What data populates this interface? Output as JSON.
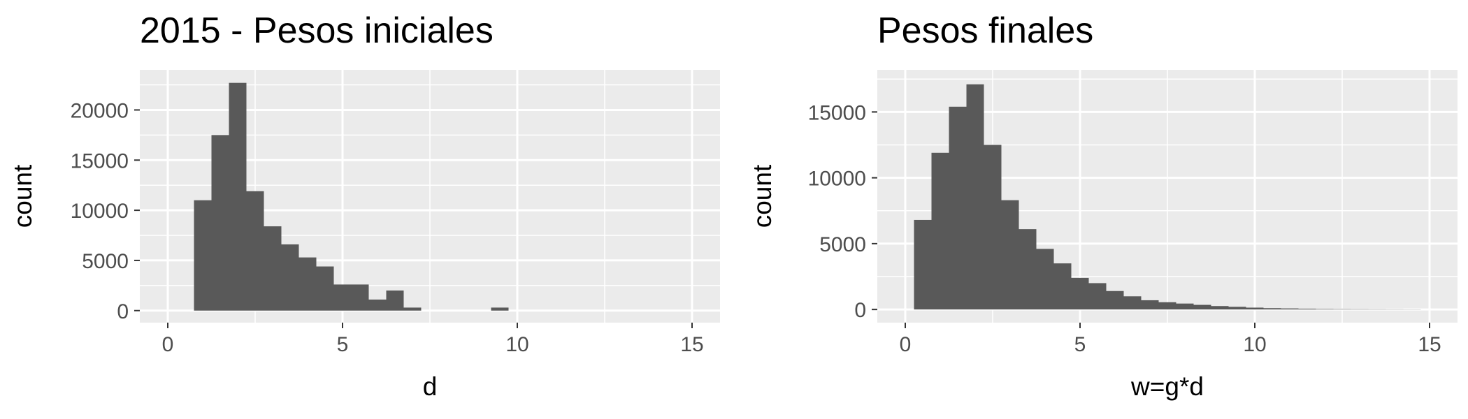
{
  "chart_data": [
    {
      "type": "bar",
      "title": "2015 - Pesos iniciales",
      "xlabel": "d",
      "ylabel": "count",
      "xlim": [
        -0.8,
        15.8
      ],
      "ylim": [
        -1200,
        24000
      ],
      "x_ticks": [
        0,
        5,
        10,
        15
      ],
      "y_ticks": [
        0,
        5000,
        10000,
        15000,
        20000
      ],
      "bin_width": 0.5,
      "bins": [
        {
          "x0": 0.75,
          "count": 11000
        },
        {
          "x0": 1.25,
          "count": 17500
        },
        {
          "x0": 1.75,
          "count": 22700
        },
        {
          "x0": 2.25,
          "count": 11900
        },
        {
          "x0": 2.75,
          "count": 8400
        },
        {
          "x0": 3.25,
          "count": 6600
        },
        {
          "x0": 3.75,
          "count": 5300
        },
        {
          "x0": 4.25,
          "count": 4400
        },
        {
          "x0": 4.75,
          "count": 2600
        },
        {
          "x0": 5.25,
          "count": 2600
        },
        {
          "x0": 5.75,
          "count": 1100
        },
        {
          "x0": 6.25,
          "count": 2000
        },
        {
          "x0": 6.75,
          "count": 300
        },
        {
          "x0": 7.25,
          "count": 0
        },
        {
          "x0": 7.75,
          "count": 0
        },
        {
          "x0": 8.25,
          "count": 0
        },
        {
          "x0": 8.75,
          "count": 0
        },
        {
          "x0": 9.25,
          "count": 300
        }
      ],
      "grid": true,
      "bar_color": "#595959",
      "panel_color": "#ebebeb"
    },
    {
      "type": "bar",
      "title": "Pesos finales",
      "xlabel": "w=g*d",
      "ylabel": "count",
      "xlim": [
        -0.8,
        15.8
      ],
      "ylim": [
        -1000,
        18200
      ],
      "x_ticks": [
        0,
        5,
        10,
        15
      ],
      "y_ticks": [
        0,
        5000,
        10000,
        15000
      ],
      "bin_width": 0.5,
      "bins": [
        {
          "x0": 0.25,
          "count": 6800
        },
        {
          "x0": 0.75,
          "count": 11900
        },
        {
          "x0": 1.25,
          "count": 15400
        },
        {
          "x0": 1.75,
          "count": 17100
        },
        {
          "x0": 2.25,
          "count": 12500
        },
        {
          "x0": 2.75,
          "count": 8300
        },
        {
          "x0": 3.25,
          "count": 6100
        },
        {
          "x0": 3.75,
          "count": 4600
        },
        {
          "x0": 4.25,
          "count": 3500
        },
        {
          "x0": 4.75,
          "count": 2400
        },
        {
          "x0": 5.25,
          "count": 2000
        },
        {
          "x0": 5.75,
          "count": 1400
        },
        {
          "x0": 6.25,
          "count": 1000
        },
        {
          "x0": 6.75,
          "count": 700
        },
        {
          "x0": 7.25,
          "count": 550
        },
        {
          "x0": 7.75,
          "count": 450
        },
        {
          "x0": 8.25,
          "count": 350
        },
        {
          "x0": 8.75,
          "count": 260
        },
        {
          "x0": 9.25,
          "count": 200
        },
        {
          "x0": 9.75,
          "count": 140
        },
        {
          "x0": 10.25,
          "count": 100
        },
        {
          "x0": 10.75,
          "count": 80
        },
        {
          "x0": 11.25,
          "count": 60
        },
        {
          "x0": 11.75,
          "count": 40
        },
        {
          "x0": 12.25,
          "count": 30
        },
        {
          "x0": 12.75,
          "count": 25
        },
        {
          "x0": 13.25,
          "count": 20
        },
        {
          "x0": 13.75,
          "count": 15
        },
        {
          "x0": 14.25,
          "count": 10
        }
      ],
      "grid": true,
      "bar_color": "#595959",
      "panel_color": "#ebebeb"
    }
  ]
}
